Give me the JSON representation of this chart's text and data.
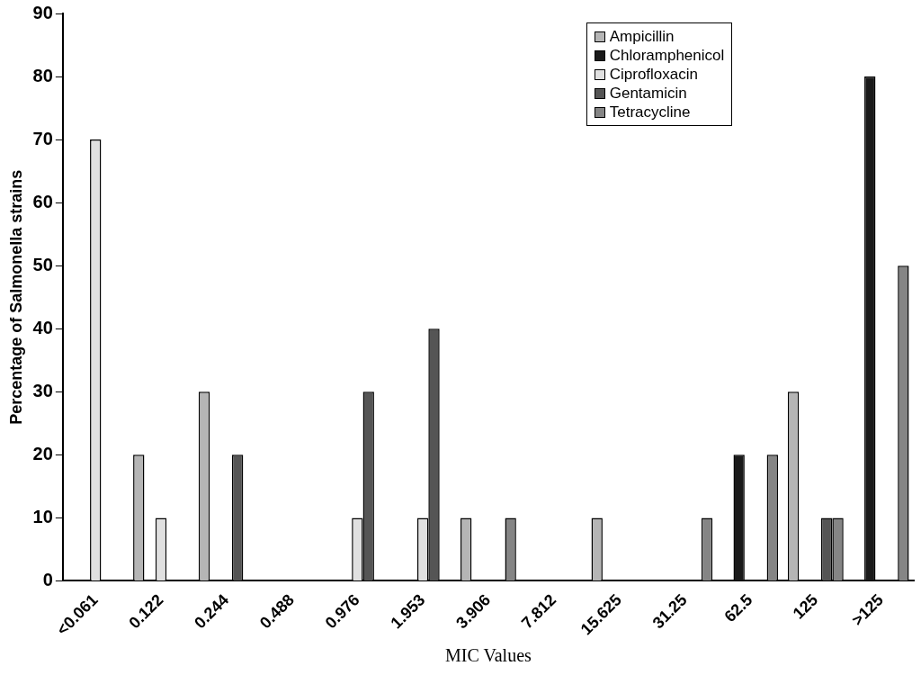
{
  "chart_data": {
    "type": "bar",
    "xlabel": "MIC Values",
    "ylabel": "Percentage of Salmonella strains",
    "categories": [
      "<0.061",
      "0.122",
      "0.244",
      "0.488",
      "0.976",
      "1.953",
      "3.906",
      "7.812",
      "15.625",
      "31.25",
      "62.5",
      "125",
      ">125"
    ],
    "series": [
      {
        "name": "Ampicillin",
        "color": "#b5b5b5",
        "values": [
          null,
          20,
          30,
          null,
          null,
          null,
          10,
          null,
          10,
          null,
          null,
          30,
          null
        ]
      },
      {
        "name": "Chloramphenicol",
        "color": "#1a1a1a",
        "values": [
          null,
          null,
          null,
          null,
          null,
          null,
          null,
          null,
          null,
          null,
          20,
          null,
          80
        ]
      },
      {
        "name": "Ciprofloxacin",
        "color": "#e0e0e0",
        "values": [
          70,
          10,
          null,
          null,
          10,
          10,
          null,
          null,
          null,
          null,
          null,
          null,
          null
        ]
      },
      {
        "name": "Gentamicin",
        "color": "#555555",
        "values": [
          null,
          null,
          20,
          null,
          30,
          40,
          null,
          null,
          null,
          null,
          null,
          10,
          null
        ]
      },
      {
        "name": "Tetracycline",
        "color": "#858585",
        "values": [
          null,
          null,
          null,
          null,
          null,
          null,
          10,
          null,
          null,
          10,
          20,
          10,
          50
        ]
      }
    ],
    "ylim": [
      0,
      90
    ],
    "yticks": [
      0,
      10,
      20,
      30,
      40,
      50,
      60,
      70,
      80,
      90
    ],
    "grid": false,
    "legend": "top right"
  }
}
